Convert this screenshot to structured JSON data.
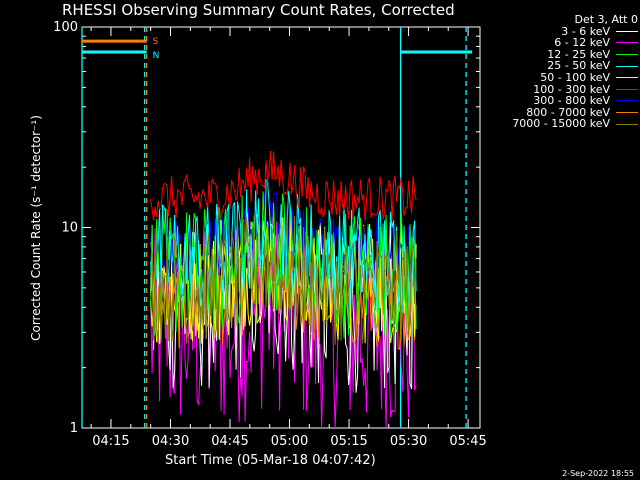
{
  "title": "RHESSI Observing Summary Count Rates, Corrected",
  "footer": "2-Sep-2022 18:55",
  "chart_data": {
    "type": "line",
    "title": "RHESSI Observing Summary Count Rates, Corrected",
    "xlabel": "Start Time (05-Mar-18 04:07:42)",
    "ylabel": "Corrected Count Rate (s⁻¹ detector⁻¹)",
    "ylog": true,
    "ylim": [
      1,
      100
    ],
    "y_ticks": [
      "1",
      "10",
      "100"
    ],
    "xlim": [
      "04:07:42",
      "05:48:00"
    ],
    "x_ticks": [
      "04:15",
      "04:30",
      "04:45",
      "05:00",
      "05:15",
      "05:30",
      "05:45"
    ],
    "legend_title": "Det 3, Att 0",
    "legend_position": "top-right",
    "flags": {
      "S": {
        "label": "S",
        "color": "#ff8000",
        "value": 85,
        "range": [
          "04:07:42",
          "04:24:00"
        ]
      },
      "N": {
        "label": "N",
        "color": "#00ffff",
        "value": 75,
        "ranges": [
          [
            "04:07:42",
            "04:24:00"
          ],
          [
            "05:28:00",
            "05:46:00"
          ]
        ]
      }
    },
    "data_window": [
      "04:25:00",
      "05:32:00"
    ],
    "markers": [
      {
        "time": "04:07:42",
        "style": "solid",
        "color": "#00ffff"
      },
      {
        "time": "04:23:30",
        "style": "dashed",
        "color": "#00ffff"
      },
      {
        "time": "04:23:30",
        "style": "dashed",
        "color": "#ff8000"
      },
      {
        "time": "05:28:00",
        "style": "solid",
        "color": "#00ffff"
      },
      {
        "time": "05:44:30",
        "style": "dashed",
        "color": "#00ffff"
      }
    ],
    "series": [
      {
        "name": "3 - 6 keV",
        "color": "#ffffff",
        "approx_level": 4.0
      },
      {
        "name": "6 - 12 keV",
        "color": "#ff00ff",
        "approx_level": 3.0
      },
      {
        "name": "12 - 25 keV",
        "color": "#00ff00",
        "approx_level": 6.0
      },
      {
        "name": "25 - 50 keV",
        "color": "#00ffff",
        "approx_level": 7.0
      },
      {
        "name": "50 - 100 keV",
        "color": "#ffff00",
        "approx_level": 5.0
      },
      {
        "name": "100 - 300 keV",
        "color": "#ff0000",
        "approx_level": 14.0
      },
      {
        "name": "300 - 800 keV",
        "color": "#0000ff",
        "approx_level": 8.0
      },
      {
        "name": "800 - 7000 keV",
        "color": "#ff8000",
        "approx_level": 4.0
      },
      {
        "name": "7000 - 15000 keV",
        "color": "#808000",
        "approx_level": 5.0
      }
    ]
  }
}
